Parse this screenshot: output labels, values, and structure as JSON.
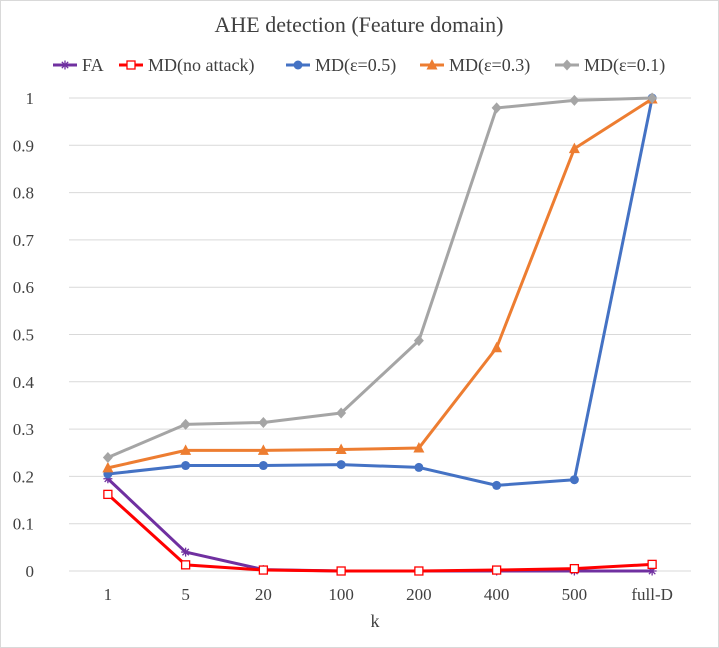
{
  "chart_data": {
    "type": "line",
    "title": "AHE detection (Feature domain)",
    "xlabel": "k",
    "ylabel": "",
    "categories": [
      "1",
      "5",
      "20",
      "100",
      "200",
      "400",
      "500",
      "full-D"
    ],
    "ylim": [
      0,
      1
    ],
    "yticks": [
      "0",
      "0.1",
      "0.2",
      "0.3",
      "0.4",
      "0.5",
      "0.6",
      "0.7",
      "0.8",
      "0.9",
      "1"
    ],
    "grid": "horizontal",
    "legend": "top",
    "series": [
      {
        "name": "FA",
        "color": "#7030a0",
        "marker": "star",
        "values": [
          0.195,
          0.04,
          0.003,
          0.0,
          0.0,
          0.0,
          0.0,
          0.0
        ]
      },
      {
        "name": "MD(no attack)",
        "color": "#ff0000",
        "marker": "square-open",
        "values": [
          0.162,
          0.013,
          0.002,
          0.0,
          0.0,
          0.002,
          0.005,
          0.014
        ]
      },
      {
        "name": "MD(ε=0.5)",
        "color": "#4472c4",
        "marker": "circle",
        "values": [
          0.205,
          0.223,
          0.223,
          0.225,
          0.219,
          0.181,
          0.193,
          1.0
        ]
      },
      {
        "name": "MD(ε=0.3)",
        "color": "#ed7d31",
        "marker": "triangle",
        "values": [
          0.218,
          0.255,
          0.255,
          0.257,
          0.26,
          0.472,
          0.893,
          0.998
        ]
      },
      {
        "name": "MD(ε=0.1)",
        "color": "#a5a5a5",
        "marker": "diamond",
        "values": [
          0.24,
          0.31,
          0.314,
          0.334,
          0.487,
          0.979,
          0.995,
          1.0
        ]
      }
    ]
  }
}
